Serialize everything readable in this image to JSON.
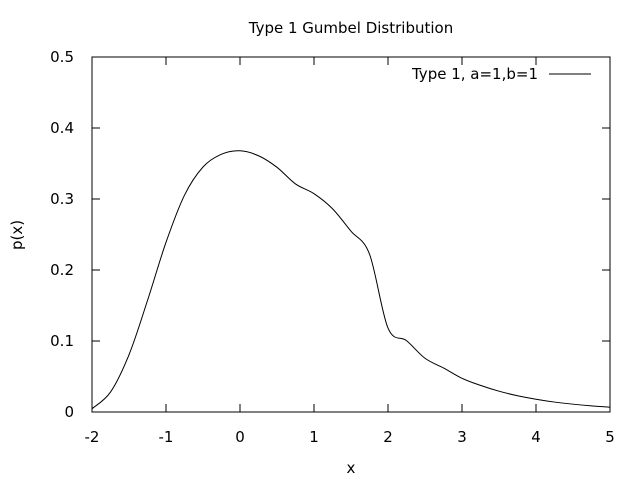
{
  "chart_data": {
    "type": "line",
    "title": "Type 1 Gumbel Distribution",
    "xlabel": "x",
    "ylabel": "p(x)",
    "xlim": [
      -2,
      5
    ],
    "ylim": [
      0,
      0.5
    ],
    "xticks": [
      "-2",
      "-1",
      "0",
      "1",
      "2",
      "3",
      "4",
      "5"
    ],
    "yticks": [
      "0",
      "0.1",
      "0.2",
      "0.3",
      "0.4",
      "0.5"
    ],
    "grid": false,
    "legend_position": "top-right",
    "series": [
      {
        "name": "Type 1, a=1,b=1",
        "color": "#000000",
        "x": [
          -2.0,
          -1.75,
          -1.5,
          -1.25,
          -1.0,
          -0.75,
          -0.5,
          -0.25,
          0.0,
          0.25,
          0.5,
          0.75,
          1.0,
          1.25,
          1.5,
          1.75,
          2.0,
          2.25,
          2.5,
          2.75,
          3.0,
          3.25,
          3.5,
          3.75,
          4.0,
          4.25,
          4.5,
          4.75,
          5.0
        ],
        "y": [
          0.0046,
          0.0281,
          0.0806,
          0.157,
          0.239,
          0.3054,
          0.3451,
          0.3631,
          0.3679,
          0.3609,
          0.3446,
          0.3212,
          0.3075,
          0.2863,
          0.2546,
          0.2224,
          0.1182,
          0.1005,
          0.0757,
          0.062,
          0.0474,
          0.0375,
          0.0293,
          0.0229,
          0.018,
          0.014,
          0.011,
          0.0086,
          0.0067
        ]
      }
    ]
  }
}
